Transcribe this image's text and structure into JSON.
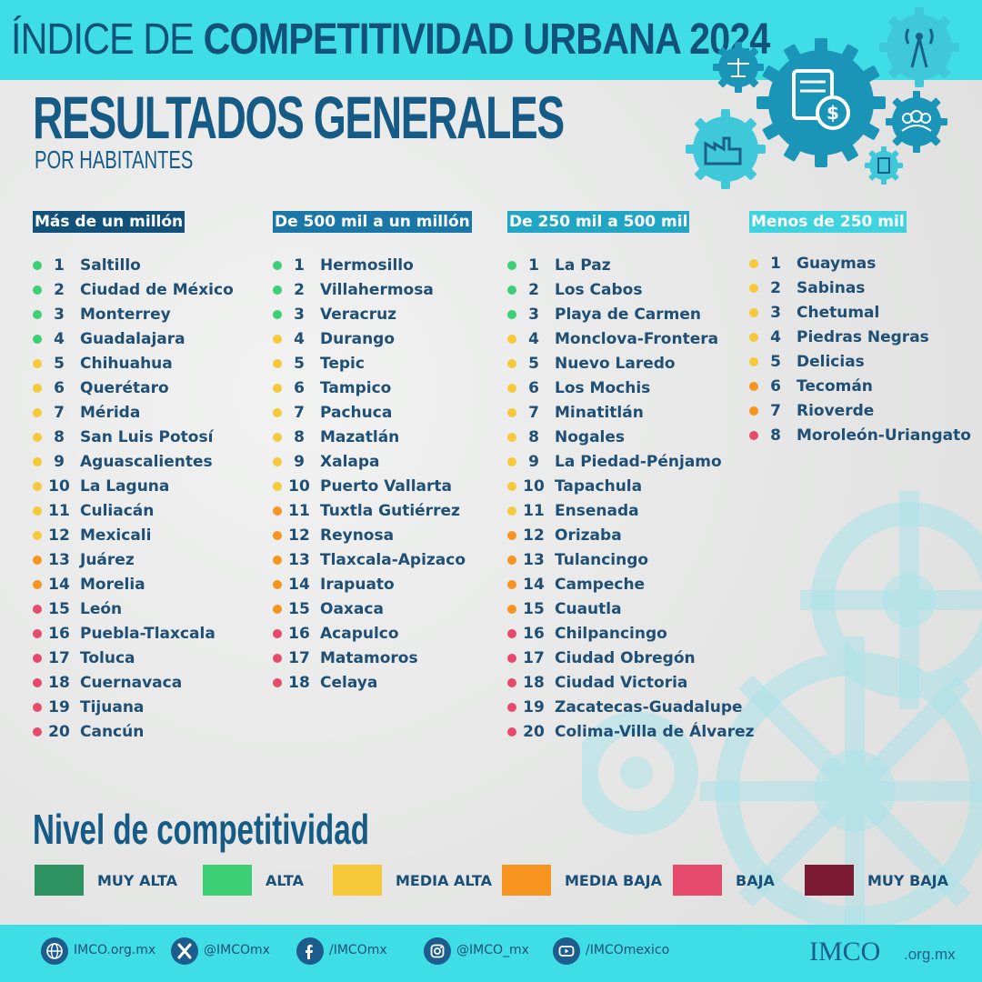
{
  "header": {
    "title_thin": "ÍNDICE DE",
    "title_bold": "COMPETITIVIDAD URBANA 2024",
    "section_title": "RESULTADOS GENERALES",
    "section_subtitle": "POR HABITANTES"
  },
  "colors": {
    "muy_alta": "#2e9160",
    "alta": "#3ccf75",
    "media_alta": "#f5c93a",
    "media_baja": "#f7941f",
    "baja": "#e64a6a",
    "muy_baja": "#7d1a33",
    "accent": "#3fdde6",
    "brand_dark": "#165a86"
  },
  "columns": [
    {
      "header": "Más de un millón",
      "header_color": "#12527a",
      "items": [
        {
          "rank": "1",
          "city": "Saltillo",
          "level": "alta"
        },
        {
          "rank": "2",
          "city": "Ciudad de México",
          "level": "alta"
        },
        {
          "rank": "3",
          "city": "Monterrey",
          "level": "alta"
        },
        {
          "rank": "4",
          "city": "Guadalajara",
          "level": "alta"
        },
        {
          "rank": "5",
          "city": "Chihuahua",
          "level": "media_alta"
        },
        {
          "rank": "6",
          "city": "Querétaro",
          "level": "media_alta"
        },
        {
          "rank": "7",
          "city": "Mérida",
          "level": "media_alta"
        },
        {
          "rank": "8",
          "city": "San Luis Potosí",
          "level": "media_alta"
        },
        {
          "rank": "9",
          "city": "Aguascalientes",
          "level": "media_alta"
        },
        {
          "rank": "10",
          "city": "La Laguna",
          "level": "media_alta"
        },
        {
          "rank": "11",
          "city": "Culiacán",
          "level": "media_alta"
        },
        {
          "rank": "12",
          "city": "Mexicali",
          "level": "media_alta"
        },
        {
          "rank": "13",
          "city": "Juárez",
          "level": "media_baja"
        },
        {
          "rank": "14",
          "city": "Morelia",
          "level": "media_baja"
        },
        {
          "rank": "15",
          "city": "León",
          "level": "baja"
        },
        {
          "rank": "16",
          "city": "Puebla-Tlaxcala",
          "level": "baja"
        },
        {
          "rank": "17",
          "city": "Toluca",
          "level": "baja"
        },
        {
          "rank": "18",
          "city": "Cuernavaca",
          "level": "baja"
        },
        {
          "rank": "19",
          "city": "Tijuana",
          "level": "baja"
        },
        {
          "rank": "20",
          "city": "Cancún",
          "level": "baja"
        }
      ]
    },
    {
      "header": "De 500 mil a un millón",
      "header_color": "#1a77a8",
      "items": [
        {
          "rank": "1",
          "city": "Hermosillo",
          "level": "alta"
        },
        {
          "rank": "2",
          "city": "Villahermosa",
          "level": "alta"
        },
        {
          "rank": "3",
          "city": "Veracruz",
          "level": "alta"
        },
        {
          "rank": "4",
          "city": "Durango",
          "level": "media_alta"
        },
        {
          "rank": "5",
          "city": "Tepic",
          "level": "media_alta"
        },
        {
          "rank": "6",
          "city": "Tampico",
          "level": "media_alta"
        },
        {
          "rank": "7",
          "city": "Pachuca",
          "level": "media_alta"
        },
        {
          "rank": "8",
          "city": "Mazatlán",
          "level": "media_alta"
        },
        {
          "rank": "9",
          "city": "Xalapa",
          "level": "media_alta"
        },
        {
          "rank": "10",
          "city": "Puerto Vallarta",
          "level": "media_alta"
        },
        {
          "rank": "11",
          "city": "Tuxtla Gutiérrez",
          "level": "media_baja"
        },
        {
          "rank": "12",
          "city": "Reynosa",
          "level": "media_baja"
        },
        {
          "rank": "13",
          "city": "Tlaxcala-Apizaco",
          "level": "media_baja"
        },
        {
          "rank": "14",
          "city": "Irapuato",
          "level": "media_baja"
        },
        {
          "rank": "15",
          "city": "Oaxaca",
          "level": "media_baja"
        },
        {
          "rank": "16",
          "city": "Acapulco",
          "level": "baja"
        },
        {
          "rank": "17",
          "city": "Matamoros",
          "level": "baja"
        },
        {
          "rank": "18",
          "city": "Celaya",
          "level": "baja"
        }
      ]
    },
    {
      "header": "De 250 mil a 500 mil",
      "header_color": "#22a6c6",
      "items": [
        {
          "rank": "1",
          "city": "La Paz",
          "level": "alta"
        },
        {
          "rank": "2",
          "city": "Los Cabos",
          "level": "alta"
        },
        {
          "rank": "3",
          "city": "Playa de Carmen",
          "level": "alta"
        },
        {
          "rank": "4",
          "city": "Monclova-Frontera",
          "level": "media_alta"
        },
        {
          "rank": "5",
          "city": "Nuevo Laredo",
          "level": "media_alta"
        },
        {
          "rank": "6",
          "city": "Los Mochis",
          "level": "media_alta"
        },
        {
          "rank": "7",
          "city": "Minatitlán",
          "level": "media_alta"
        },
        {
          "rank": "8",
          "city": "Nogales",
          "level": "media_alta"
        },
        {
          "rank": "9",
          "city": "La Piedad-Pénjamo",
          "level": "media_alta"
        },
        {
          "rank": "10",
          "city": "Tapachula",
          "level": "media_alta"
        },
        {
          "rank": "11",
          "city": "Ensenada",
          "level": "media_alta"
        },
        {
          "rank": "12",
          "city": "Orizaba",
          "level": "media_baja"
        },
        {
          "rank": "13",
          "city": "Tulancingo",
          "level": "media_baja"
        },
        {
          "rank": "14",
          "city": "Campeche",
          "level": "media_baja"
        },
        {
          "rank": "15",
          "city": "Cuautla",
          "level": "media_baja"
        },
        {
          "rank": "16",
          "city": "Chilpancingo",
          "level": "baja"
        },
        {
          "rank": "17",
          "city": "Ciudad Obregón",
          "level": "baja"
        },
        {
          "rank": "18",
          "city": "Ciudad Victoria",
          "level": "baja"
        },
        {
          "rank": "19",
          "city": "Zacatecas-Guadalupe",
          "level": "baja"
        },
        {
          "rank": "20",
          "city": "Colima-Villa de Álvarez",
          "level": "baja"
        }
      ]
    },
    {
      "header": "Menos de 250 mil",
      "header_color": "#3fd3df",
      "items": [
        {
          "rank": "1",
          "city": "Guaymas",
          "level": "media_alta"
        },
        {
          "rank": "2",
          "city": "Sabinas",
          "level": "media_alta"
        },
        {
          "rank": "3",
          "city": "Chetumal",
          "level": "media_alta"
        },
        {
          "rank": "4",
          "city": "Piedras Negras",
          "level": "media_alta"
        },
        {
          "rank": "5",
          "city": "Delicias",
          "level": "media_alta"
        },
        {
          "rank": "6",
          "city": "Tecomán",
          "level": "media_baja"
        },
        {
          "rank": "7",
          "city": "Rioverde",
          "level": "media_baja"
        },
        {
          "rank": "8",
          "city": "Moroleón-Uriangato",
          "level": "baja"
        }
      ]
    }
  ],
  "legend": {
    "title": "Nivel de competitividad",
    "items": [
      {
        "key": "muy_alta",
        "label": "MUY ALTA"
      },
      {
        "key": "alta",
        "label": "ALTA"
      },
      {
        "key": "media_alta",
        "label": "MEDIA ALTA"
      },
      {
        "key": "media_baja",
        "label": "MEDIA BAJA"
      },
      {
        "key": "baja",
        "label": "BAJA"
      },
      {
        "key": "muy_baja",
        "label": "MUY BAJA"
      }
    ]
  },
  "footer": {
    "links": [
      {
        "icon": "globe-icon",
        "text": "IMCO.org.mx"
      },
      {
        "icon": "x-icon",
        "text": "@IMCOmx"
      },
      {
        "icon": "facebook-icon",
        "text": "/IMCOmx"
      },
      {
        "icon": "instagram-icon",
        "text": "@IMCO_mx"
      },
      {
        "icon": "youtube-icon",
        "text": "/IMCOmexico"
      }
    ],
    "logo_text": "IMCO",
    "logo_domain": ".org.mx"
  }
}
